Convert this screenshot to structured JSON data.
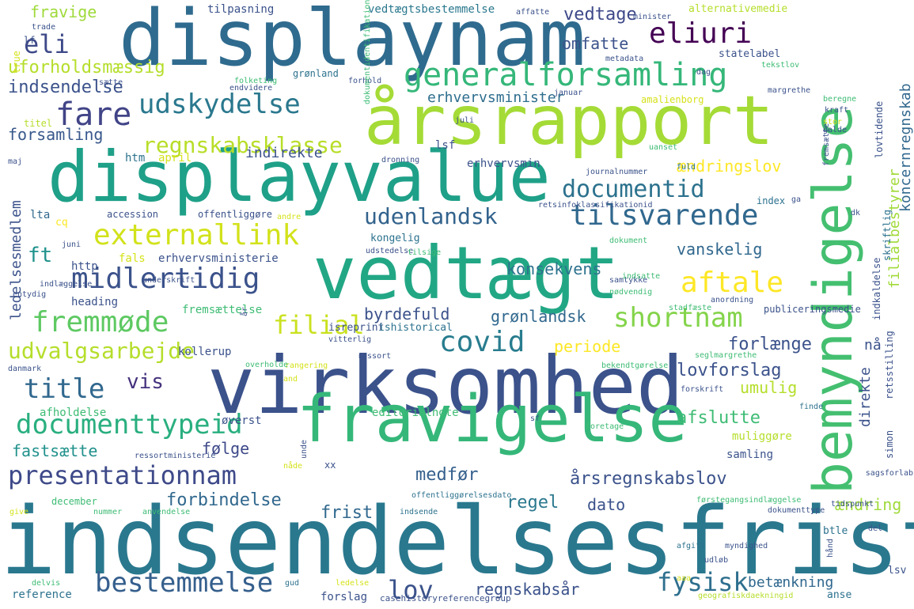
{
  "words": [
    {
      "text": "indsendelsesfrist",
      "color": "#2a788e"
    },
    {
      "text": "virksomhed",
      "color": "#3b528b"
    },
    {
      "text": "displaynam",
      "color": "#2f6b8e"
    },
    {
      "text": "årsrapport",
      "color": "#a5db36"
    },
    {
      "text": "displayvalue",
      "color": "#1fa088"
    },
    {
      "text": "vedtægt",
      "color": "#22a785"
    },
    {
      "text": "fravigelse",
      "color": "#35b779"
    },
    {
      "text": "bemyndigelse",
      "color": "#44bf70"
    },
    {
      "text": "generalforsamling",
      "color": "#35b779"
    },
    {
      "text": "udskydelse",
      "color": "#2a788e"
    },
    {
      "text": "eliuri",
      "color": "#440154"
    },
    {
      "text": "eli",
      "color": "#3e4989"
    },
    {
      "text": "fare",
      "color": "#414487"
    },
    {
      "text": "externallink",
      "color": "#d2e21b"
    },
    {
      "text": "documentid",
      "color": "#2c728e"
    },
    {
      "text": "tilsvarende",
      "color": "#31688e"
    },
    {
      "text": "udenlandsk",
      "color": "#33638d"
    },
    {
      "text": "midlertidig",
      "color": "#3b528b"
    },
    {
      "text": "aftale",
      "color": "#fde725"
    },
    {
      "text": "fremmøde",
      "color": "#5ec962"
    },
    {
      "text": "filial",
      "color": "#cae11f"
    },
    {
      "text": "shortnam",
      "color": "#84d44b"
    },
    {
      "text": "covid",
      "color": "#287c8e"
    },
    {
      "text": "udvalgsarbejde",
      "color": "#b5de2b"
    },
    {
      "text": "title",
      "color": "#31688e"
    },
    {
      "text": "vis",
      "color": "#46327e"
    },
    {
      "text": "documenttypeid",
      "color": "#29af7f"
    },
    {
      "text": "presentationnam",
      "color": "#3e4a89"
    },
    {
      "text": "bestemmelse",
      "color": "#355f8d"
    },
    {
      "text": "lov",
      "color": "#3b528b"
    },
    {
      "text": "fysisk",
      "color": "#2e6f8e"
    },
    {
      "text": "regnskabsklasse",
      "color": "#b8de29"
    },
    {
      "text": "omfatte",
      "color": "#3b528b"
    },
    {
      "text": "vedtage",
      "color": "#3e4989"
    },
    {
      "text": "fravige",
      "color": "#9fda3a"
    },
    {
      "text": "uforholdsmæssig",
      "color": "#b5de2b"
    },
    {
      "text": "indsendelse",
      "color": "#3b528b"
    },
    {
      "text": "forsamling",
      "color": "#38588c"
    },
    {
      "text": "erhvervsminister",
      "color": "#2e6e8e"
    },
    {
      "text": "indirekte",
      "color": "#3b528b"
    },
    {
      "text": "ændringslov",
      "color": "#fde725"
    },
    {
      "text": "ft",
      "color": "#20928c"
    },
    {
      "text": "konsekvens",
      "color": "#2c728e"
    },
    {
      "text": "vanskelig",
      "color": "#31688e"
    },
    {
      "text": "byrdefuld",
      "color": "#3b528b"
    },
    {
      "text": "grønlandsk",
      "color": "#31688e"
    },
    {
      "text": "periode",
      "color": "#fde725"
    },
    {
      "text": "forlænge",
      "color": "#3b528b"
    },
    {
      "text": "lovforslag",
      "color": "#3b528b"
    },
    {
      "text": "umulig",
      "color": "#b5de2b"
    },
    {
      "text": "afslutte",
      "color": "#3ebc74"
    },
    {
      "text": "fastsætte",
      "color": "#21918c"
    },
    {
      "text": "følge",
      "color": "#3e4989"
    },
    {
      "text": "medfør",
      "color": "#35608d"
    },
    {
      "text": "årsregnskabslov",
      "color": "#3b528b"
    },
    {
      "text": "frist",
      "color": "#31688e"
    },
    {
      "text": "regel",
      "color": "#2a788e"
    },
    {
      "text": "forbindelse",
      "color": "#31688e"
    },
    {
      "text": "dato",
      "color": "#3b528b"
    },
    {
      "text": "ændring",
      "color": "#9fda3a"
    },
    {
      "text": "regnskabsår",
      "color": "#3b528b"
    },
    {
      "text": "betænkning",
      "color": "#31688e"
    },
    {
      "text": "nå",
      "color": "#3b528b"
    },
    {
      "text": "direkte",
      "color": "#3b528b"
    },
    {
      "text": "filialbestyrer",
      "color": "#a0da39"
    },
    {
      "text": "koncernregnskab",
      "color": "#31688e"
    },
    {
      "text": "ledelsesmedlem",
      "color": "#3b528b"
    },
    {
      "text": "tilpasning",
      "color": "#3b528b"
    },
    {
      "text": "vedtægtsbestemmelse",
      "color": "#2a788e"
    },
    {
      "text": "alternativemedie",
      "color": "#b5de2b"
    },
    {
      "text": "statelabel",
      "color": "#3b528b"
    },
    {
      "text": "grønland",
      "color": "#2c728e"
    },
    {
      "text": "amalienborg",
      "color": "#d5e21a"
    },
    {
      "text": "lovtidende",
      "color": "#3b528b"
    },
    {
      "text": "indkaldelse",
      "color": "#3b528b"
    },
    {
      "text": "retsstilling",
      "color": "#3b528b"
    },
    {
      "text": "simon",
      "color": "#3b528b"
    },
    {
      "text": "skriftlig",
      "color": "#2c728e"
    },
    {
      "text": "htm",
      "color": "#2c728e"
    },
    {
      "text": "april",
      "color": "#d5e21a"
    },
    {
      "text": "erhvervsmin",
      "color": "#3b528b"
    },
    {
      "text": "lsf",
      "color": "#3b528b"
    },
    {
      "text": "lta",
      "color": "#31688e"
    },
    {
      "text": "cq",
      "color": "#fde725"
    },
    {
      "text": "accession",
      "color": "#3b528b"
    },
    {
      "text": "offentliggøre",
      "color": "#3b528b"
    },
    {
      "text": "kongelig",
      "color": "#2c728e"
    },
    {
      "text": "http",
      "color": "#3b528b"
    },
    {
      "text": "fals",
      "color": "#d5e21a"
    },
    {
      "text": "erhvervsministerie",
      "color": "#3b528b"
    },
    {
      "text": "heading",
      "color": "#3b528b"
    },
    {
      "text": "fremsættelse",
      "color": "#3ebc74"
    },
    {
      "text": "isreprint",
      "color": "#3b528b"
    },
    {
      "text": "ishistorical",
      "color": "#2c728e"
    },
    {
      "text": "kollerup",
      "color": "#3b528b"
    },
    {
      "text": "editorialnote",
      "color": "#3ebc74"
    },
    {
      "text": "øverst",
      "color": "#3b528b"
    },
    {
      "text": "afholdelse",
      "color": "#3ebc74"
    },
    {
      "text": "muliggøre",
      "color": "#b5de2b"
    },
    {
      "text": "samling",
      "color": "#3b528b"
    },
    {
      "text": "reference",
      "color": "#2c728e"
    },
    {
      "text": "forslag",
      "color": "#3b528b"
    },
    {
      "text": "december",
      "color": "#3ebc74"
    },
    {
      "text": "lf",
      "color": "#3b528b"
    },
    {
      "text": "titel",
      "color": "#b5de2b"
    },
    {
      "text": "xx",
      "color": "#3b528b"
    },
    {
      "text": "btle",
      "color": "#2c728e"
    },
    {
      "text": "lsv",
      "color": "#3b528b"
    },
    {
      "text": "anse",
      "color": "#2c728e"
    },
    {
      "text": "true",
      "color": "#d5e21a"
    },
    {
      "text": "juli",
      "color": "#3b528b"
    },
    {
      "text": "index",
      "color": "#2c728e"
    },
    {
      "text": "dronning",
      "color": "#3b528b"
    },
    {
      "text": "retsinfoklassifikationid",
      "color": "#3b528b"
    },
    {
      "text": "udstedelse",
      "color": "#3b528b"
    },
    {
      "text": "nødvendig",
      "color": "#3ebc74"
    },
    {
      "text": "publiceringsmedie",
      "color": "#3b528b"
    },
    {
      "text": "stadfæste",
      "color": "#3ebc74"
    },
    {
      "text": "casehistoryreferencegroup",
      "color": "#3b528b"
    },
    {
      "text": "geografiskdaekningid",
      "color": "#b5de2b"
    },
    {
      "text": "førstegangsindlæggelse",
      "color": "#3ebc74"
    },
    {
      "text": "dokumenttype",
      "color": "#3b528b"
    },
    {
      "text": "offentliggørelsesdato",
      "color": "#2c728e"
    },
    {
      "text": "indsende",
      "color": "#2c728e"
    },
    {
      "text": "anvendelse",
      "color": "#3ebc74"
    },
    {
      "text": "nummer",
      "color": "#3ebc74"
    },
    {
      "text": "give",
      "color": "#d5e21a"
    },
    {
      "text": "delvis",
      "color": "#3ebc74"
    },
    {
      "text": "gud",
      "color": "#2c728e"
    },
    {
      "text": "ledelse",
      "color": "#d5e21a"
    },
    {
      "text": "udløb",
      "color": "#3b528b"
    },
    {
      "text": "afgift",
      "color": "#2c728e"
    },
    {
      "text": "myndighed",
      "color": "#3b528b"
    },
    {
      "text": "fuld",
      "color": "#2c728e"
    },
    {
      "text": "journalnummer",
      "color": "#3b528b"
    },
    {
      "text": "ressortministerie",
      "color": "#3b528b"
    },
    {
      "text": "bekendtgørelse",
      "color": "#3ebc74"
    },
    {
      "text": "forskrift",
      "color": "#3b528b"
    },
    {
      "text": "finde",
      "color": "#2c728e"
    },
    {
      "text": "sagsforlab",
      "color": "#3b528b"
    },
    {
      "text": "tidspunkt",
      "color": "#3b528b"
    },
    {
      "text": "del",
      "color": "#3b528b"
    },
    {
      "text": "ressort",
      "color": "#3b528b"
    },
    {
      "text": "rangering",
      "color": "#d5e21a"
    },
    {
      "text": "overholde",
      "color": "#3ebc74"
    },
    {
      "text": "vitterlig",
      "color": "#3b528b"
    },
    {
      "text": "danmark",
      "color": "#3b528b"
    },
    {
      "text": "indlæggelse",
      "color": "#3b528b"
    },
    {
      "text": "entydig",
      "color": "#3b528b"
    },
    {
      "text": "maj",
      "color": "#3b528b"
    },
    {
      "text": "sætte",
      "color": "#3b528b"
    },
    {
      "text": "folketing",
      "color": "#3ebc74"
    },
    {
      "text": "endvidere",
      "color": "#3b528b"
    },
    {
      "text": "forhold",
      "color": "#3b528b"
    },
    {
      "text": "dag",
      "color": "#3b528b"
    },
    {
      "text": "metadata",
      "color": "#3b528b"
    },
    {
      "text": "tekstlov",
      "color": "#3ebc74"
    },
    {
      "text": "margrethe",
      "color": "#3b528b"
    },
    {
      "text": "beregne",
      "color": "#3ebc74"
    },
    {
      "text": "kraft",
      "color": "#3b528b"
    },
    {
      "text": "affatte",
      "color": "#3b528b"
    },
    {
      "text": "januar",
      "color": "#3b528b"
    },
    {
      "text": "minister",
      "color": "#3b528b"
    },
    {
      "text": "stor",
      "color": "#d5e21a"
    },
    {
      "text": "galde",
      "color": "#3b528b"
    },
    {
      "text": "uanset",
      "color": "#3ebc74"
    },
    {
      "text": "dk",
      "color": "#3b528b"
    },
    {
      "text": "ga",
      "color": "#3b528b"
    },
    {
      "text": "andre",
      "color": "#d5e21a"
    },
    {
      "text": "juni",
      "color": "#3b528b"
    },
    {
      "text": "tilsige",
      "color": "#3ebc74"
    },
    {
      "text": "dokument",
      "color": "#3ebc74"
    },
    {
      "text": "underskrift",
      "color": "#3b528b"
    },
    {
      "text": "anordning",
      "color": "#3b528b"
    },
    {
      "text": "samtykke",
      "color": "#3b528b"
    },
    {
      "text": "foretage",
      "color": "#3ebc74"
    },
    {
      "text": "sf",
      "color": "#3b528b"
    },
    {
      "text": "seglmargrethe",
      "color": "#3ebc74"
    },
    {
      "text": "and",
      "color": "#d5e21a"
    },
    {
      "text": "år",
      "color": "#3b528b"
    },
    {
      "text": "nåde",
      "color": "#d5e21a"
    },
    {
      "text": "unde",
      "color": "#3b528b"
    },
    {
      "text": "trade",
      "color": "#3b528b"
    },
    {
      "text": "fremsætte",
      "color": "#3b528b"
    },
    {
      "text": "dokumentidentifikation",
      "color": "#3ebc74"
    },
    {
      "text": "indsatte",
      "color": "#3ebc74"
    },
    {
      "text": "aaa",
      "color": "#d5e21a"
    },
    {
      "text": "hånd",
      "color": "#3b528b"
    },
    {
      "text": "opfylde",
      "color": "#d5e21a"
    }
  ]
}
